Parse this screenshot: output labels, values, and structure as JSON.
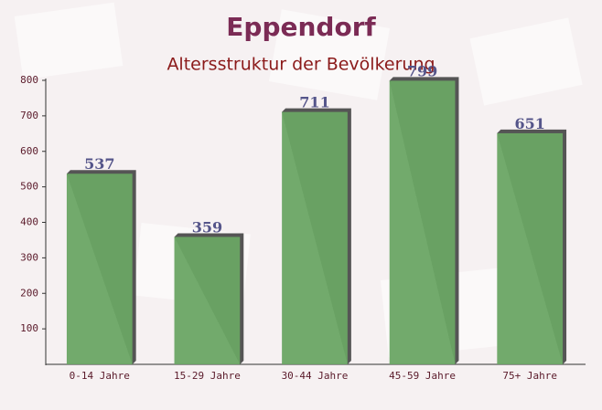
{
  "chart_data": {
    "type": "bar",
    "title": "Eppendorf",
    "subtitle": "Altersstruktur der Bevölkerung",
    "categories": [
      "0-14 Jahre",
      "15-29 Jahre",
      "30-44 Jahre",
      "45-59 Jahre",
      "75+ Jahre"
    ],
    "values": [
      537,
      359,
      711,
      799,
      651
    ],
    "color": "#6aa564",
    "ylim": [
      0,
      800
    ],
    "yticks": [
      100,
      200,
      300,
      400,
      500,
      600,
      700,
      800
    ],
    "grid": false
  }
}
